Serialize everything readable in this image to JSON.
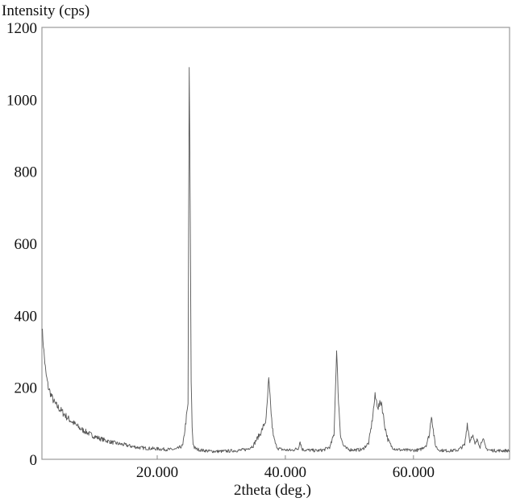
{
  "chart_data": {
    "type": "line",
    "title": "",
    "ylabel": "Intensity (cps)",
    "xlabel": "2theta (deg.)",
    "xlim": [
      2,
      75
    ],
    "ylim": [
      0,
      1200
    ],
    "grid": false,
    "x_ticks": [
      20,
      40,
      60
    ],
    "x_tick_labels": [
      "20.000",
      "40.000",
      "60.000"
    ],
    "y_ticks": [
      0,
      200,
      400,
      600,
      800,
      1000,
      1200
    ],
    "y_tick_labels": [
      "0",
      "200",
      "400",
      "600",
      "800",
      "1000",
      "1200"
    ],
    "series": [
      {
        "x": [
          2,
          2.3,
          2.6,
          3,
          3.5,
          4,
          5,
          6,
          7,
          8,
          9,
          10,
          11,
          12,
          13,
          14,
          15,
          16,
          17,
          18,
          19,
          20,
          21,
          22,
          23,
          24,
          24.8,
          25.0,
          25.15,
          25.3,
          25.45,
          25.6,
          25.8,
          26.2,
          27,
          28,
          29,
          30,
          31,
          32,
          33,
          34,
          35,
          35.5,
          36.2,
          37,
          37.4,
          37.7,
          37.95,
          38.2,
          38.5,
          38.9,
          39.3,
          40,
          41,
          42,
          42.3,
          42.6,
          43,
          44,
          45,
          46,
          47,
          47.6,
          48.0,
          48.3,
          48.6,
          49.0,
          49.5,
          50,
          51,
          52,
          53,
          53.5,
          54.0,
          54.5,
          55.0,
          55.5,
          56.0,
          56.6,
          57.2,
          58,
          59,
          60,
          61,
          62,
          62.5,
          62.8,
          63.1,
          63.4,
          63.8,
          64.3,
          65,
          66,
          67,
          68,
          68.4,
          68.8,
          69.2,
          69.6,
          70,
          70.4,
          70.8,
          71.3,
          72,
          73,
          74,
          75
        ],
        "y": [
          370,
          300,
          240,
          200,
          175,
          155,
          135,
          115,
          100,
          85,
          75,
          65,
          58,
          52,
          47,
          43,
          40,
          36,
          33,
          31,
          30,
          29,
          28,
          27,
          28,
          38,
          150,
          1090,
          700,
          220,
          90,
          45,
          32,
          28,
          25,
          23,
          22,
          22,
          23,
          24,
          25,
          28,
          38,
          55,
          75,
          110,
          220,
          150,
          90,
          60,
          40,
          30,
          28,
          26,
          25,
          30,
          50,
          28,
          26,
          25,
          24,
          26,
          35,
          70,
          300,
          160,
          70,
          40,
          30,
          27,
          26,
          27,
          45,
          100,
          175,
          145,
          160,
          95,
          55,
          35,
          28,
          26,
          25,
          25,
          26,
          40,
          70,
          125,
          80,
          40,
          28,
          25,
          24,
          24,
          26,
          40,
          100,
          50,
          70,
          40,
          55,
          35,
          60,
          30,
          25,
          24,
          24,
          24
        ]
      }
    ]
  }
}
